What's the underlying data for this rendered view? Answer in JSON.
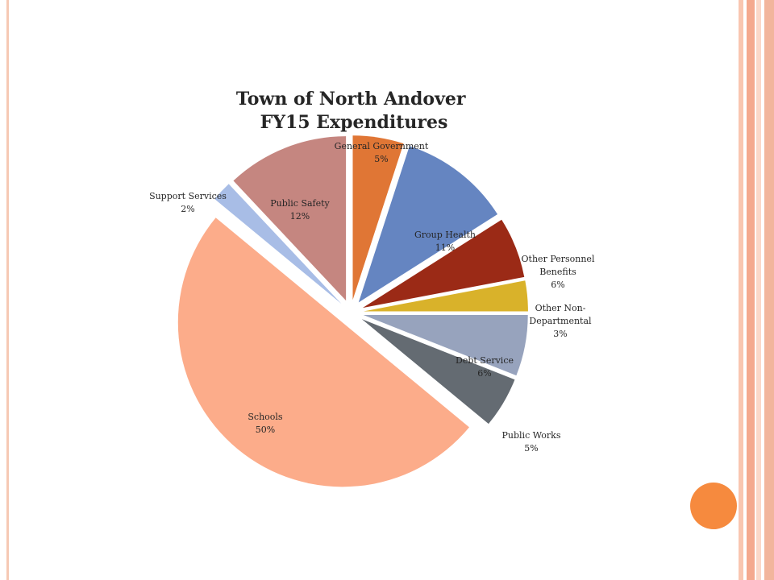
{
  "colors": {
    "left_line": "#f6c9b4",
    "stripes": [
      "#f9c6b0",
      "#f4a98e",
      "#fbd8c8",
      "#f2b59c"
    ],
    "accent_circle": "#f68a3e"
  },
  "chart_data": {
    "type": "pie",
    "exploded": true,
    "title": [
      "Town of North Andover",
      "FY15 Expenditures"
    ],
    "legend": "none",
    "slices": [
      {
        "label": [
          "General Government",
          "5%"
        ],
        "value": 5,
        "color": "#e07635"
      },
      {
        "label": [
          "Group Health",
          "11%"
        ],
        "value": 11,
        "color": "#6585c1"
      },
      {
        "label": [
          "Other Personnel",
          "Benefits",
          "6%"
        ],
        "value": 6,
        "color": "#9b2a16"
      },
      {
        "label": [
          "Other Non-",
          "Departmental",
          "3%"
        ],
        "value": 3,
        "color": "#d9b22a"
      },
      {
        "label": [
          "Debt Service",
          "6%"
        ],
        "value": 6,
        "color": "#97a3bd"
      },
      {
        "label": [
          "Public Works",
          "5%"
        ],
        "value": 5,
        "color": "#646b72"
      },
      {
        "label": [
          "Schools",
          "50%"
        ],
        "value": 50,
        "color": "#fcac8a"
      },
      {
        "label": [
          "Support Services",
          "2%"
        ],
        "value": 2,
        "color": "#a8bde6"
      },
      {
        "label": [
          "Public Safety",
          "12%"
        ],
        "value": 12,
        "color": "#c58680"
      }
    ]
  }
}
